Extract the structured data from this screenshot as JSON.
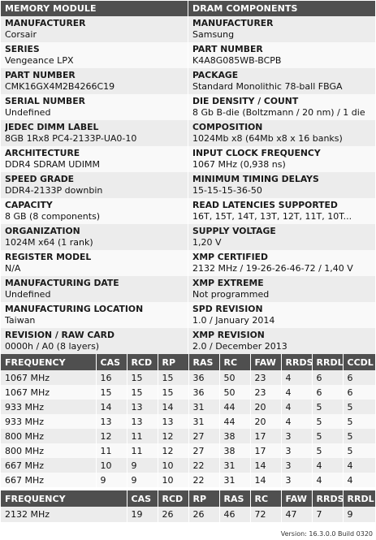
{
  "memory_module": {
    "header": "MEMORY MODULE",
    "fields": [
      {
        "label": "MANUFACTURER",
        "value": "Corsair"
      },
      {
        "label": "SERIES",
        "value": "Vengeance LPX"
      },
      {
        "label": "PART NUMBER",
        "value": "CMK16GX4M2B4266C19"
      },
      {
        "label": "SERIAL NUMBER",
        "value": "Undefined"
      },
      {
        "label": "JEDEC DIMM LABEL",
        "value": "8GB 1Rx8 PC4-2133P-UA0-10"
      },
      {
        "label": "ARCHITECTURE",
        "value": "DDR4 SDRAM UDIMM"
      },
      {
        "label": "SPEED GRADE",
        "value": "DDR4-2133P downbin"
      },
      {
        "label": "CAPACITY",
        "value": "8 GB (8 components)"
      },
      {
        "label": "ORGANIZATION",
        "value": "1024M x64 (1 rank)"
      },
      {
        "label": "REGISTER MODEL",
        "value": "N/A"
      },
      {
        "label": "MANUFACTURING DATE",
        "value": "Undefined"
      },
      {
        "label": "MANUFACTURING LOCATION",
        "value": "Taiwan"
      },
      {
        "label": "REVISION / RAW CARD",
        "value": "0000h / A0 (8 layers)"
      }
    ]
  },
  "dram_components": {
    "header": "DRAM COMPONENTS",
    "fields": [
      {
        "label": "MANUFACTURER",
        "value": "Samsung"
      },
      {
        "label": "PART NUMBER",
        "value": "K4A8G085WB-BCPB"
      },
      {
        "label": "PACKAGE",
        "value": "Standard Monolithic 78-ball FBGA"
      },
      {
        "label": "DIE DENSITY / COUNT",
        "value": "8 Gb B-die (Boltzmann / 20 nm) / 1 die"
      },
      {
        "label": "COMPOSITION",
        "value": "1024Mb x8 (64Mb x8 x 16 banks)"
      },
      {
        "label": "INPUT CLOCK FREQUENCY",
        "value": "1067 MHz (0,938 ns)"
      },
      {
        "label": "MINIMUM TIMING DELAYS",
        "value": "15-15-15-36-50"
      },
      {
        "label": "READ LATENCIES SUPPORTED",
        "value": "16T, 15T, 14T, 13T, 12T, 11T, 10T..."
      },
      {
        "label": "SUPPLY VOLTAGE",
        "value": "1,20 V"
      },
      {
        "label": "XMP CERTIFIED",
        "value": "2132 MHz / 19-26-26-46-72 / 1,40 V"
      },
      {
        "label": "XMP EXTREME",
        "value": "Not programmed"
      },
      {
        "label": "SPD REVISION",
        "value": "1.0 / January 2014"
      },
      {
        "label": "XMP REVISION",
        "value": "2.0 / December 2013"
      }
    ]
  },
  "jedec_timings": {
    "headers": [
      "FREQUENCY",
      "CAS",
      "RCD",
      "RP",
      "RAS",
      "RC",
      "FAW",
      "RRDS",
      "RRDL",
      "CCDL"
    ],
    "rows": [
      [
        "1067 MHz",
        "16",
        "15",
        "15",
        "36",
        "50",
        "23",
        "4",
        "6",
        "6"
      ],
      [
        "1067 MHz",
        "15",
        "15",
        "15",
        "36",
        "50",
        "23",
        "4",
        "6",
        "6"
      ],
      [
        "933 MHz",
        "14",
        "13",
        "14",
        "31",
        "44",
        "20",
        "4",
        "5",
        "5"
      ],
      [
        "933 MHz",
        "13",
        "13",
        "13",
        "31",
        "44",
        "20",
        "4",
        "5",
        "5"
      ],
      [
        "800 MHz",
        "12",
        "11",
        "12",
        "27",
        "38",
        "17",
        "3",
        "5",
        "5"
      ],
      [
        "800 MHz",
        "11",
        "11",
        "12",
        "27",
        "38",
        "17",
        "3",
        "5",
        "5"
      ],
      [
        "667 MHz",
        "10",
        "9",
        "10",
        "22",
        "31",
        "14",
        "3",
        "4",
        "4"
      ],
      [
        "667 MHz",
        "9",
        "9",
        "10",
        "22",
        "31",
        "14",
        "3",
        "4",
        "4"
      ]
    ]
  },
  "xmp_timings": {
    "headers": [
      "FREQUENCY",
      "CAS",
      "RCD",
      "RP",
      "RAS",
      "RC",
      "FAW",
      "RRDS",
      "RRDL"
    ],
    "rows": [
      [
        "2132 MHz",
        "19",
        "26",
        "26",
        "46",
        "72",
        "47",
        "7",
        "9"
      ]
    ]
  },
  "footer": {
    "version": "Version: 16.3.0.0 Build 0320"
  }
}
